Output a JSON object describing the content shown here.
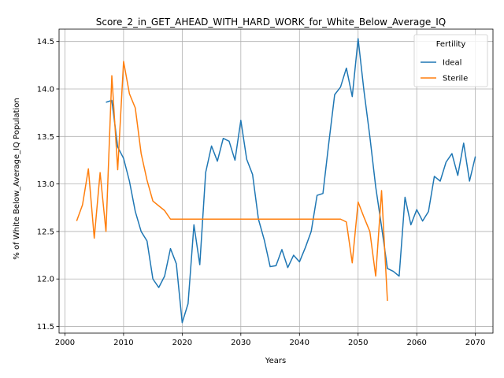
{
  "chart_data": {
    "type": "line",
    "title": "Score_2_in_GET_AHEAD_WITH_HARD_WORK_for_White_Below_Average_IQ",
    "xlabel": "Years",
    "ylabel": "% of White Below_Average_IQ Population",
    "xlim": [
      1999,
      2073
    ],
    "ylim": [
      11.43,
      14.63
    ],
    "xticks": [
      2000,
      2010,
      2020,
      2030,
      2040,
      2050,
      2060,
      2070
    ],
    "yticks": [
      11.5,
      12.0,
      12.5,
      13.0,
      13.5,
      14.0,
      14.5
    ],
    "grid": true,
    "legend": {
      "title": "Fertility",
      "placement": "top-right"
    },
    "series": [
      {
        "name": "Ideal",
        "color": "#1f77b4",
        "points": [
          [
            2007,
            13.86
          ],
          [
            2008,
            13.88
          ],
          [
            2009,
            13.39
          ],
          [
            2010,
            13.27
          ],
          [
            2011,
            13.03
          ],
          [
            2012,
            12.71
          ],
          [
            2013,
            12.5
          ],
          [
            2014,
            12.4
          ],
          [
            2015,
            12.0
          ],
          [
            2016,
            11.91
          ],
          [
            2017,
            12.03
          ],
          [
            2018,
            12.32
          ],
          [
            2019,
            12.16
          ],
          [
            2020,
            11.54
          ],
          [
            2021,
            11.74
          ],
          [
            2022,
            12.57
          ],
          [
            2023,
            12.15
          ],
          [
            2024,
            13.12
          ],
          [
            2025,
            13.4
          ],
          [
            2026,
            13.24
          ],
          [
            2027,
            13.48
          ],
          [
            2028,
            13.45
          ],
          [
            2029,
            13.25
          ],
          [
            2030,
            13.67
          ],
          [
            2031,
            13.26
          ],
          [
            2032,
            13.1
          ],
          [
            2033,
            12.63
          ],
          [
            2034,
            12.41
          ],
          [
            2035,
            12.13
          ],
          [
            2036,
            12.14
          ],
          [
            2037,
            12.31
          ],
          [
            2038,
            12.12
          ],
          [
            2039,
            12.25
          ],
          [
            2040,
            12.18
          ],
          [
            2041,
            12.33
          ],
          [
            2042,
            12.5
          ],
          [
            2043,
            12.88
          ],
          [
            2044,
            12.9
          ],
          [
            2045,
            13.43
          ],
          [
            2046,
            13.94
          ],
          [
            2047,
            14.02
          ],
          [
            2048,
            14.22
          ],
          [
            2049,
            13.92
          ],
          [
            2050,
            14.53
          ],
          [
            2051,
            13.98
          ],
          [
            2052,
            13.5
          ],
          [
            2053,
            12.97
          ],
          [
            2054,
            12.55
          ],
          [
            2055,
            12.11
          ],
          [
            2056,
            12.08
          ],
          [
            2057,
            12.03
          ],
          [
            2058,
            12.86
          ],
          [
            2059,
            12.57
          ],
          [
            2060,
            12.73
          ],
          [
            2061,
            12.61
          ],
          [
            2062,
            12.71
          ],
          [
            2063,
            13.08
          ],
          [
            2064,
            13.03
          ],
          [
            2065,
            13.23
          ],
          [
            2066,
            13.32
          ],
          [
            2067,
            13.09
          ],
          [
            2068,
            13.43
          ],
          [
            2069,
            13.03
          ],
          [
            2070,
            13.29
          ]
        ]
      },
      {
        "name": "Sterile",
        "color": "#ff7f0e",
        "points": [
          [
            2002,
            12.61
          ],
          [
            2003,
            12.78
          ],
          [
            2004,
            13.16
          ],
          [
            2005,
            12.43
          ],
          [
            2006,
            13.12
          ],
          [
            2007,
            12.5
          ],
          [
            2008,
            14.14
          ],
          [
            2009,
            13.15
          ],
          [
            2010,
            14.29
          ],
          [
            2011,
            13.95
          ],
          [
            2012,
            13.8
          ],
          [
            2013,
            13.32
          ],
          [
            2014,
            13.04
          ],
          [
            2015,
            12.82
          ],
          [
            2016,
            12.77
          ],
          [
            2017,
            12.72
          ],
          [
            2018,
            12.63
          ],
          [
            2020,
            12.63
          ],
          [
            2030,
            12.63
          ],
          [
            2040,
            12.63
          ],
          [
            2047,
            12.63
          ],
          [
            2048,
            12.6
          ],
          [
            2049,
            12.17
          ],
          [
            2050,
            12.81
          ],
          [
            2051,
            12.65
          ],
          [
            2052,
            12.5
          ],
          [
            2053,
            12.03
          ],
          [
            2054,
            12.93
          ],
          [
            2055,
            11.77
          ]
        ]
      }
    ]
  }
}
